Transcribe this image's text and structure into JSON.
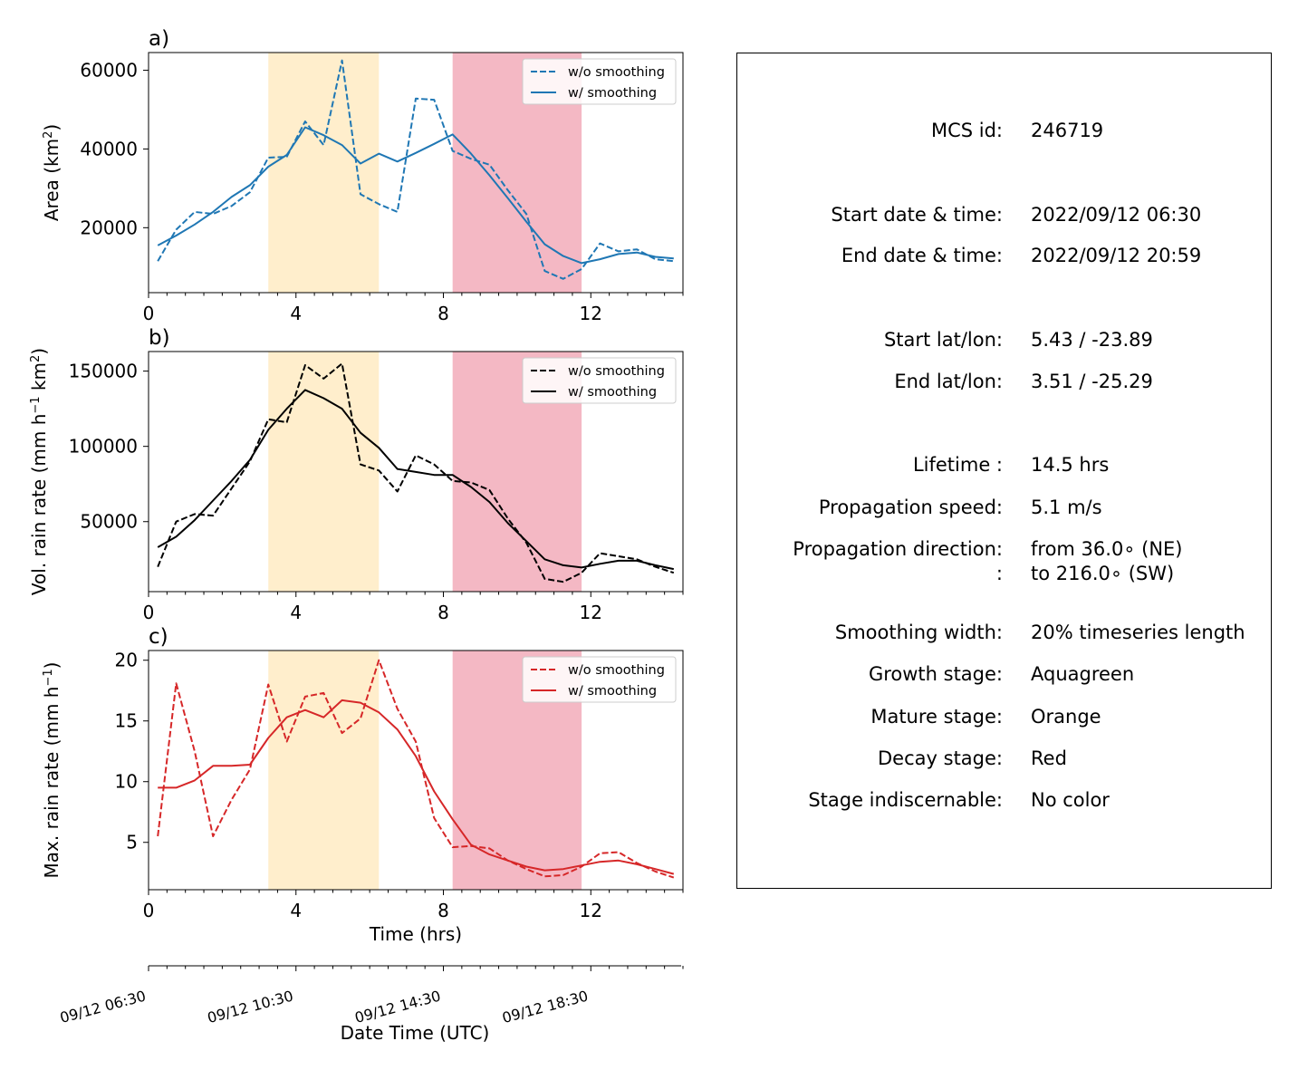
{
  "chart_data": [
    {
      "panel_label": "a)",
      "type": "line",
      "ylabel": "Area  (km²)",
      "ylabel_main": "Area  (km",
      "ylabel_sup": "2",
      "ylabel_tail": ")",
      "xlim": [
        0,
        14.5
      ],
      "ylim": [
        3500,
        64500
      ],
      "yticks": [
        20000,
        40000,
        60000
      ],
      "xticks": [
        0,
        4,
        8,
        12
      ],
      "shading": [
        {
          "x0": 3.25,
          "x1": 6.25,
          "color": "#ffeecc"
        },
        {
          "x0": 8.25,
          "x1": 11.75,
          "color": "#f4b8c4"
        }
      ],
      "legend_position": "top-right",
      "color": "#1f77b4",
      "series": [
        {
          "name": "w/o smoothing",
          "style": "dashed",
          "x": [
            0.25,
            0.75,
            1.25,
            1.75,
            2.25,
            2.75,
            3.25,
            3.75,
            4.25,
            4.75,
            5.25,
            5.75,
            6.25,
            6.75,
            7.25,
            7.75,
            8.25,
            8.75,
            9.25,
            9.75,
            10.25,
            10.75,
            11.25,
            11.75,
            12.25,
            12.75,
            13.25,
            13.75,
            14.25
          ],
          "y": [
            11500,
            19500,
            24000,
            23500,
            25500,
            29000,
            37800,
            38000,
            47000,
            41000,
            62500,
            28500,
            26000,
            24000,
            52800,
            52500,
            39500,
            37500,
            36000,
            29500,
            23500,
            9000,
            7000,
            9500,
            16000,
            14000,
            14500,
            12000,
            11500
          ]
        },
        {
          "name": "w/ smoothing",
          "style": "solid",
          "x": [
            0.25,
            0.75,
            1.25,
            1.75,
            2.25,
            2.75,
            3.25,
            3.75,
            4.25,
            4.75,
            5.25,
            5.75,
            6.25,
            6.75,
            7.25,
            7.75,
            8.25,
            8.75,
            9.25,
            9.75,
            10.25,
            10.75,
            11.25,
            11.75,
            12.25,
            12.75,
            13.25,
            13.75,
            14.25
          ],
          "y": [
            15500,
            18000,
            20800,
            24000,
            27800,
            30800,
            35500,
            38500,
            45500,
            43500,
            41000,
            36300,
            38800,
            36800,
            39000,
            41300,
            43700,
            38800,
            33300,
            27500,
            21500,
            15800,
            12800,
            11000,
            12000,
            13300,
            13700,
            12600,
            12200
          ]
        }
      ]
    },
    {
      "panel_label": "b)",
      "type": "line",
      "ylabel": "Vol. rain rate (mm h⁻¹ km²)",
      "ylabel_main": "Vol. rain rate (mm h",
      "ylabel_sup": "−1",
      "ylabel_mid": " km",
      "ylabel_sup2": "2",
      "ylabel_tail": ")",
      "xlim": [
        0,
        14.5
      ],
      "ylim": [
        3500,
        163000
      ],
      "yticks": [
        50000,
        100000,
        150000
      ],
      "xticks": [
        0,
        4,
        8,
        12
      ],
      "shading": [
        {
          "x0": 3.25,
          "x1": 6.25,
          "color": "#ffeecc"
        },
        {
          "x0": 8.25,
          "x1": 11.75,
          "color": "#f4b8c4"
        }
      ],
      "legend_position": "top-right",
      "color": "#000000",
      "series": [
        {
          "name": "w/o smoothing",
          "style": "dashed",
          "x": [
            0.25,
            0.75,
            1.25,
            1.75,
            2.25,
            2.75,
            3.25,
            3.75,
            4.25,
            4.75,
            5.25,
            5.75,
            6.25,
            6.75,
            7.25,
            7.75,
            8.25,
            8.75,
            9.25,
            9.75,
            10.25,
            10.75,
            11.25,
            11.75,
            12.25,
            12.75,
            13.25,
            13.75,
            14.25
          ],
          "y": [
            20000,
            50000,
            55000,
            54000,
            72000,
            90000,
            118000,
            116000,
            154000,
            145000,
            155000,
            88000,
            84000,
            70000,
            94000,
            88000,
            77000,
            76000,
            71000,
            52000,
            36000,
            12000,
            10000,
            16000,
            29000,
            27000,
            25000,
            20000,
            16000
          ]
        },
        {
          "name": "w/ smoothing",
          "style": "solid",
          "x": [
            0.25,
            0.75,
            1.25,
            1.75,
            2.25,
            2.75,
            3.25,
            3.75,
            4.25,
            4.75,
            5.25,
            5.75,
            6.25,
            6.75,
            7.25,
            7.75,
            8.25,
            8.75,
            9.25,
            9.75,
            10.25,
            10.75,
            11.25,
            11.75,
            12.25,
            12.75,
            13.25,
            13.75,
            14.25
          ],
          "y": [
            33000,
            40000,
            51000,
            64000,
            77000,
            91000,
            111000,
            125000,
            137500,
            132000,
            125000,
            109000,
            99000,
            85000,
            83000,
            81000,
            81000,
            73000,
            63000,
            49000,
            37000,
            25000,
            21000,
            19500,
            22000,
            24000,
            24000,
            21000,
            18500
          ]
        }
      ]
    },
    {
      "panel_label": "c)",
      "type": "line",
      "ylabel": "Max. rain rate  (mm h⁻¹)",
      "ylabel_main": "Max. rain rate  (mm h",
      "ylabel_sup": "−1",
      "ylabel_tail": ")",
      "xlabel": "Time (hrs)",
      "xlim": [
        0,
        14.5
      ],
      "ylim": [
        1.1,
        20.8
      ],
      "yticks": [
        5,
        10,
        15,
        20
      ],
      "xticks": [
        0,
        4,
        8,
        12
      ],
      "shading": [
        {
          "x0": 3.25,
          "x1": 6.25,
          "color": "#ffeecc"
        },
        {
          "x0": 8.25,
          "x1": 11.75,
          "color": "#f4b8c4"
        }
      ],
      "legend_position": "top-right",
      "color": "#d62728",
      "series": [
        {
          "name": "w/o smoothing",
          "style": "dashed",
          "x": [
            0.25,
            0.75,
            1.25,
            1.75,
            2.25,
            2.75,
            3.25,
            3.75,
            4.25,
            4.75,
            5.25,
            5.75,
            6.25,
            6.75,
            7.25,
            7.75,
            8.25,
            8.75,
            9.25,
            9.75,
            10.25,
            10.75,
            11.25,
            11.75,
            12.25,
            12.75,
            13.25,
            13.75,
            14.25
          ],
          "y": [
            5.5,
            18.1,
            12.5,
            5.5,
            8.5,
            11.0,
            18.0,
            13.3,
            17.0,
            17.3,
            14.0,
            15.2,
            20.0,
            16.0,
            13.3,
            7.0,
            4.6,
            4.7,
            4.5,
            3.5,
            2.8,
            2.2,
            2.3,
            3.0,
            4.1,
            4.2,
            3.3,
            2.6,
            2.1
          ]
        },
        {
          "name": "w/ smoothing",
          "style": "solid",
          "x": [
            0.25,
            0.75,
            1.25,
            1.75,
            2.25,
            2.75,
            3.25,
            3.75,
            4.25,
            4.75,
            5.25,
            5.75,
            6.25,
            6.75,
            7.25,
            7.75,
            8.25,
            8.75,
            9.25,
            9.75,
            10.25,
            10.75,
            11.25,
            11.75,
            12.25,
            12.75,
            13.25,
            13.75,
            14.25
          ],
          "y": [
            9.5,
            9.5,
            10.1,
            11.3,
            11.3,
            11.4,
            13.6,
            15.3,
            15.9,
            15.3,
            16.7,
            16.5,
            15.7,
            14.3,
            12.1,
            9.2,
            6.9,
            4.8,
            4.0,
            3.5,
            3.0,
            2.7,
            2.8,
            3.1,
            3.4,
            3.5,
            3.2,
            2.8,
            2.4
          ]
        }
      ]
    }
  ],
  "datetime_axis": {
    "xlabel": "Date Time (UTC)",
    "ticks": [
      {
        "x": 0,
        "label": "09/12 06:30"
      },
      {
        "x": 4,
        "label": "09/12 10:30"
      },
      {
        "x": 8,
        "label": "09/12 14:30"
      },
      {
        "x": 12,
        "label": "09/12 18:30"
      }
    ]
  },
  "info": [
    {
      "label": "MCS id:",
      "value": "246719"
    },
    {
      "label": "Start date & time:",
      "value": "2022/09/12 06:30"
    },
    {
      "label": "End date & time:",
      "value": "2022/09/12 20:59"
    },
    {
      "label": "Start lat/lon:",
      "value": "5.43 / -23.89"
    },
    {
      "label": "End lat/lon:",
      "value": "3.51 / -25.29"
    },
    {
      "label": "Lifetime :",
      "value": "14.5 hrs"
    },
    {
      "label": "Propagation speed:",
      "value": "5.1 m/s"
    },
    {
      "label": "Propagation direction:",
      "value": "from  36.0∘ (NE)"
    },
    {
      "label": ":",
      "value": "to   216.0∘ (SW)"
    },
    {
      "label": "Smoothing width:",
      "value": "20% timeseries length"
    },
    {
      "label": "Growth stage:",
      "value": "Aquagreen"
    },
    {
      "label": "Mature stage:",
      "value": "Orange"
    },
    {
      "label": "Decay stage:",
      "value": "Red"
    },
    {
      "label": "Stage indiscernable:",
      "value": "No color"
    }
  ]
}
